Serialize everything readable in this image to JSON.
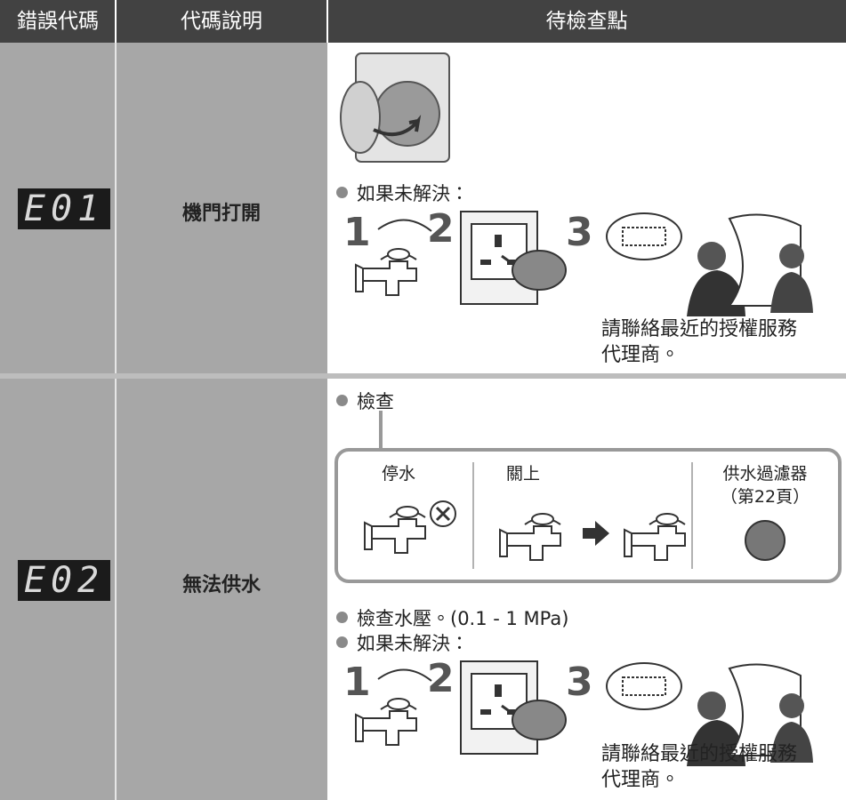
{
  "table": {
    "headers": [
      "錯誤代碼",
      "代碼說明",
      "待檢查點"
    ],
    "rows": [
      {
        "code": "E01",
        "description": "機門打開",
        "bullets": [
          "如果未解決："
        ],
        "steps": [
          "1",
          "2",
          "3"
        ],
        "contact": "請聯絡最近的授權服務代理商。"
      },
      {
        "code": "E02",
        "description": "無法供水",
        "check_title": "檢查",
        "checks": [
          {
            "label": "停水"
          },
          {
            "label": "關上"
          },
          {
            "label": "供水過濾器",
            "note": "（第22頁）"
          }
        ],
        "bullets": [
          "檢查水壓。(0.1 - 1 MPa)",
          "如果未解決："
        ],
        "steps": [
          "1",
          "2",
          "3"
        ],
        "contact": "請聯絡最近的授權服務代理商。"
      }
    ]
  }
}
